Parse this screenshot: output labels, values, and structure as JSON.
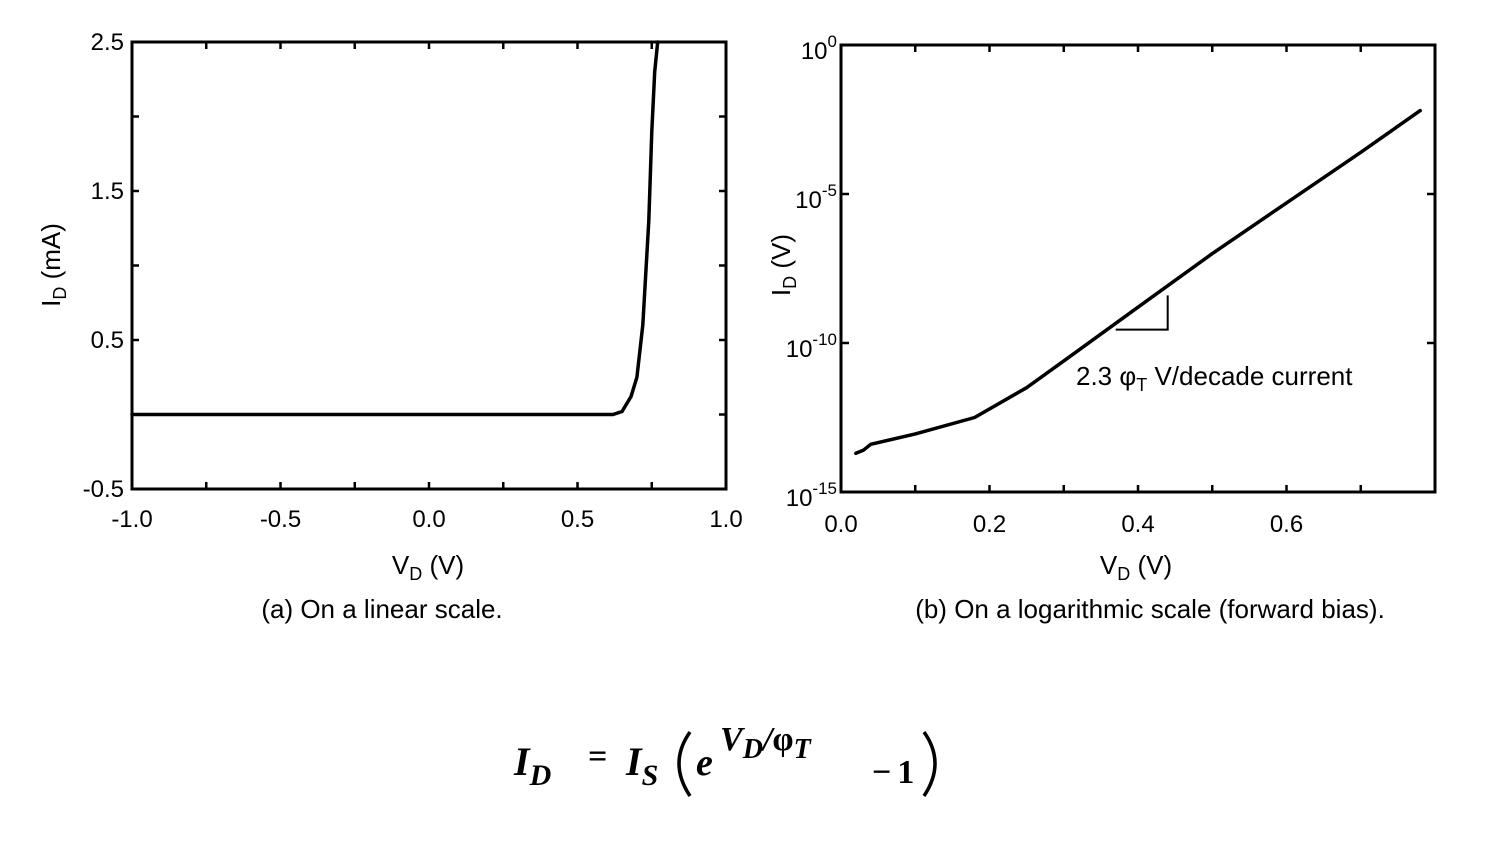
{
  "chart_data": [
    {
      "type": "line",
      "caption": "(a) On a linear scale.",
      "xlabel": "V",
      "xlabel_sub": "D",
      "xlabel_unit": " (V)",
      "ylabel": "I",
      "ylabel_sub": "D",
      "ylabel_unit": " (mA)",
      "xlim": [
        -1.0,
        1.0
      ],
      "ylim": [
        -0.5,
        2.5
      ],
      "xticks": [
        -1.0,
        -0.5,
        0.0,
        0.5,
        1.0
      ],
      "xtick_labels": [
        "-1.0",
        "-0.5",
        "0.0",
        "0.5",
        "1.0"
      ],
      "yticks": [
        -0.5,
        0.5,
        1.5,
        2.5
      ],
      "ytick_labels": [
        "-0.5",
        "0.5",
        "1.5",
        "2.5"
      ],
      "x": [
        -1.0,
        0.5,
        0.62,
        0.65,
        0.68,
        0.7,
        0.72,
        0.74,
        0.75,
        0.76,
        0.77
      ],
      "y": [
        0.0,
        0.0,
        0.0,
        0.02,
        0.12,
        0.25,
        0.6,
        1.3,
        1.9,
        2.3,
        2.5
      ],
      "grid": false
    },
    {
      "type": "line",
      "caption": "(b) On a  logarithmic scale (forward bias).",
      "xlabel": "V",
      "xlabel_sub": "D",
      "xlabel_unit": " (V)",
      "ylabel": "I",
      "ylabel_sub": "D",
      "ylabel_unit": " (V)",
      "xlim": [
        0.0,
        0.8
      ],
      "ylim_log10": [
        -15,
        0
      ],
      "xticks": [
        0.0,
        0.2,
        0.4,
        0.6
      ],
      "xtick_labels": [
        "0.0",
        "0.2",
        "0.4",
        "0.6"
      ],
      "yticks_exp": [
        -15,
        -10,
        -5,
        0
      ],
      "ytick_base": "10",
      "ytick_exp_labels": [
        "-15",
        "-10",
        "-5",
        "0"
      ],
      "x": [
        0.02,
        0.03,
        0.04,
        0.1,
        0.18,
        0.25,
        0.3,
        0.4,
        0.5,
        0.6,
        0.7,
        0.78
      ],
      "log10_y": [
        -13.7,
        -13.6,
        -13.4,
        -13.05,
        -12.5,
        -11.5,
        -10.6,
        -8.8,
        -7.0,
        -5.3,
        -3.6,
        -2.2
      ],
      "annotation": {
        "prefix": "2.3 ",
        "symbol": "φ",
        "symbol_sub": "T",
        "suffix": " V/decade current",
        "triangle_x": [
          0.37,
          0.44
        ],
        "triangle_log10_y": [
          -9.55,
          -8.4
        ]
      },
      "grid": false
    }
  ],
  "equation": {
    "lhs": "I",
    "lhs_sub": "D",
    "equals": "=",
    "is": "I",
    "is_sub": "S",
    "exp_base": "e",
    "exp_num": "V",
    "exp_num_sub": "D",
    "exp_slash": "/",
    "exp_den": "φ",
    "exp_den_sub": "T",
    "minus": "−",
    "one": "1"
  }
}
